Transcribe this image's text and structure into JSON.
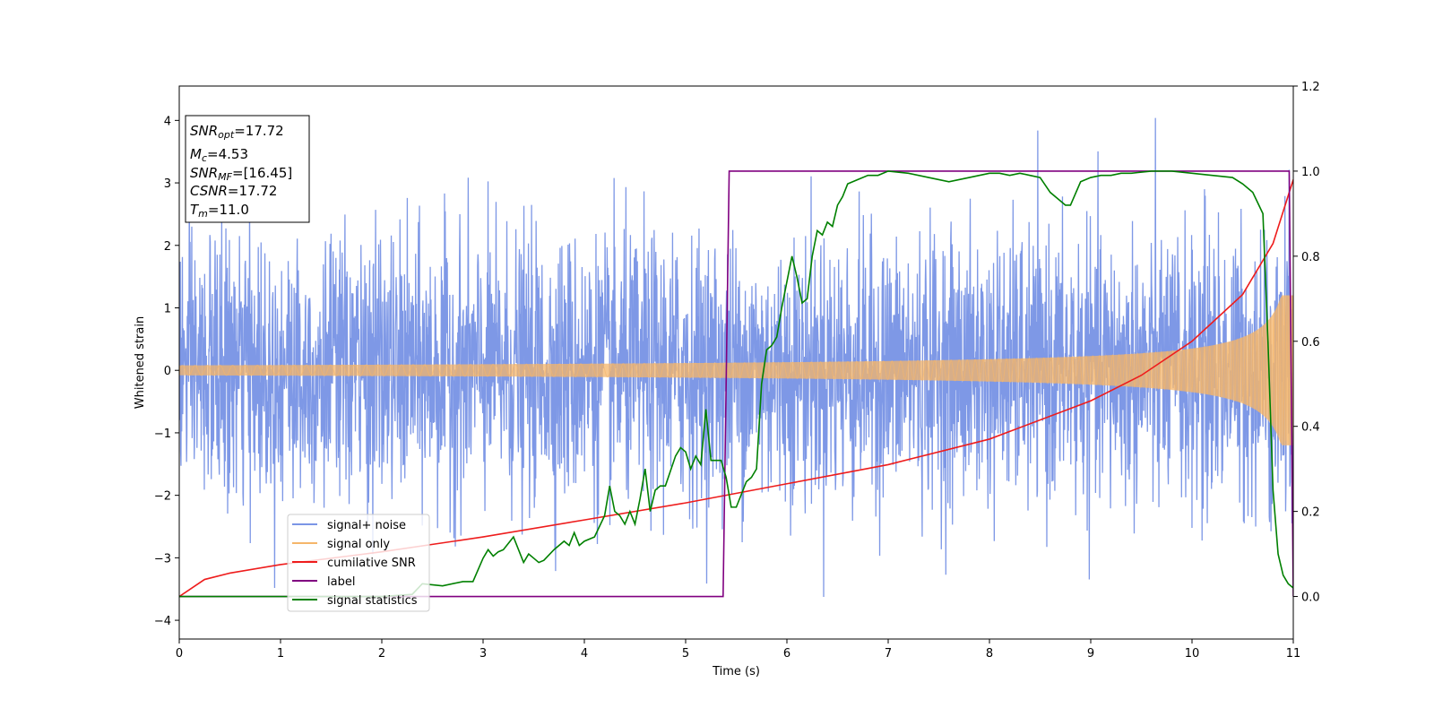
{
  "chart_data": {
    "type": "line",
    "xlabel": "Time (s)",
    "ylabel": "Whitened strain",
    "xlim": [
      0,
      11
    ],
    "ylim_left": [
      -4.3,
      4.55
    ],
    "ylim_right": [
      -0.1,
      1.2
    ],
    "x_ticks": [
      "0",
      "1",
      "2",
      "3",
      "4",
      "5",
      "6",
      "7",
      "8",
      "9",
      "10",
      "11"
    ],
    "y_left_ticks": [
      "−4",
      "−3",
      "−2",
      "−1",
      "0",
      "1",
      "2",
      "3",
      "4"
    ],
    "y_right_ticks": [
      "0.0",
      "0.2",
      "0.4",
      "0.6",
      "0.8",
      "1.0",
      "1.2"
    ],
    "grid": false,
    "legend_placement": "lower-left",
    "info_box": {
      "snr_opt": {
        "sym": "SNR",
        "sub": "opt",
        "val": "=17.72"
      },
      "mc": {
        "sym": "M",
        "sub": "c",
        "val": "=4.53"
      },
      "snr_mf": {
        "sym": "SNR",
        "sub": "MF",
        "val": "=[16.45]"
      },
      "csnr": {
        "sym": "CSNR",
        "val": "=17.72"
      },
      "tm": {
        "sym": "T",
        "sub": "m",
        "val": "=11.0"
      }
    },
    "series": [
      {
        "name": "signal+ noise",
        "color": "#7b96e6",
        "axis": "left",
        "noise_std": 1.05,
        "base_amp": 0.08,
        "end_amp": 1.0
      },
      {
        "name": "signal only",
        "color": "#f5b66a",
        "axis": "left",
        "base_amp": 0.08,
        "end_amp": 1.0
      },
      {
        "name": "cumilative SNR",
        "color": "#ee1c1c",
        "axis": "right",
        "x": [
          0,
          0.25,
          0.5,
          1,
          2,
          3,
          4,
          5,
          6,
          7,
          8,
          9,
          9.5,
          10,
          10.5,
          10.8,
          11
        ],
        "y": [
          0.0,
          0.04,
          0.055,
          0.075,
          0.105,
          0.14,
          0.18,
          0.22,
          0.265,
          0.31,
          0.37,
          0.46,
          0.52,
          0.6,
          0.71,
          0.83,
          0.98
        ]
      },
      {
        "name": "label",
        "color": "#800080",
        "axis": "right",
        "x": [
          0,
          5.37,
          5.43,
          10.96,
          11
        ],
        "y": [
          0,
          0,
          1,
          1,
          0
        ]
      },
      {
        "name": "signal statistics",
        "color": "#008000",
        "axis": "right",
        "x": [
          0,
          0.8,
          1.5,
          2.0,
          2.3,
          2.4,
          2.6,
          2.8,
          2.9,
          3.0,
          3.05,
          3.1,
          3.15,
          3.2,
          3.3,
          3.4,
          3.45,
          3.5,
          3.55,
          3.6,
          3.7,
          3.8,
          3.85,
          3.9,
          3.95,
          4.0,
          4.1,
          4.2,
          4.25,
          4.3,
          4.35,
          4.4,
          4.45,
          4.5,
          4.55,
          4.6,
          4.65,
          4.7,
          4.75,
          4.8,
          4.9,
          4.95,
          5.0,
          5.05,
          5.1,
          5.15,
          5.2,
          5.25,
          5.3,
          5.35,
          5.4,
          5.45,
          5.5,
          5.55,
          5.6,
          5.65,
          5.7,
          5.75,
          5.8,
          5.85,
          5.9,
          5.95,
          6.0,
          6.05,
          6.1,
          6.15,
          6.2,
          6.25,
          6.3,
          6.35,
          6.4,
          6.45,
          6.5,
          6.55,
          6.6,
          6.7,
          6.8,
          6.9,
          7.0,
          7.2,
          7.4,
          7.6,
          7.8,
          7.9,
          8.0,
          8.1,
          8.2,
          8.3,
          8.4,
          8.5,
          8.6,
          8.7,
          8.75,
          8.8,
          8.9,
          9.0,
          9.1,
          9.2,
          9.3,
          9.4,
          9.6,
          9.8,
          10.0,
          10.2,
          10.4,
          10.5,
          10.6,
          10.7,
          10.75,
          10.8,
          10.85,
          10.9,
          10.95,
          11.0
        ],
        "y": [
          0.0,
          0.0,
          0.0,
          0.0,
          0.005,
          0.03,
          0.025,
          0.035,
          0.035,
          0.09,
          0.11,
          0.095,
          0.105,
          0.11,
          0.14,
          0.08,
          0.1,
          0.09,
          0.08,
          0.085,
          0.11,
          0.13,
          0.12,
          0.15,
          0.12,
          0.13,
          0.14,
          0.19,
          0.26,
          0.2,
          0.19,
          0.17,
          0.2,
          0.17,
          0.23,
          0.3,
          0.2,
          0.25,
          0.26,
          0.26,
          0.33,
          0.35,
          0.34,
          0.3,
          0.33,
          0.31,
          0.44,
          0.32,
          0.32,
          0.32,
          0.28,
          0.21,
          0.21,
          0.24,
          0.27,
          0.28,
          0.3,
          0.5,
          0.58,
          0.59,
          0.61,
          0.68,
          0.74,
          0.8,
          0.75,
          0.69,
          0.7,
          0.8,
          0.86,
          0.85,
          0.88,
          0.87,
          0.92,
          0.94,
          0.97,
          0.98,
          0.99,
          0.99,
          1.0,
          0.995,
          0.985,
          0.975,
          0.985,
          0.99,
          0.995,
          0.995,
          0.99,
          0.995,
          0.99,
          0.985,
          0.95,
          0.93,
          0.92,
          0.92,
          0.975,
          0.985,
          0.99,
          0.99,
          0.995,
          0.995,
          1.0,
          1.0,
          0.995,
          0.99,
          0.985,
          0.97,
          0.95,
          0.9,
          0.6,
          0.25,
          0.1,
          0.05,
          0.03,
          0.02
        ]
      }
    ]
  }
}
